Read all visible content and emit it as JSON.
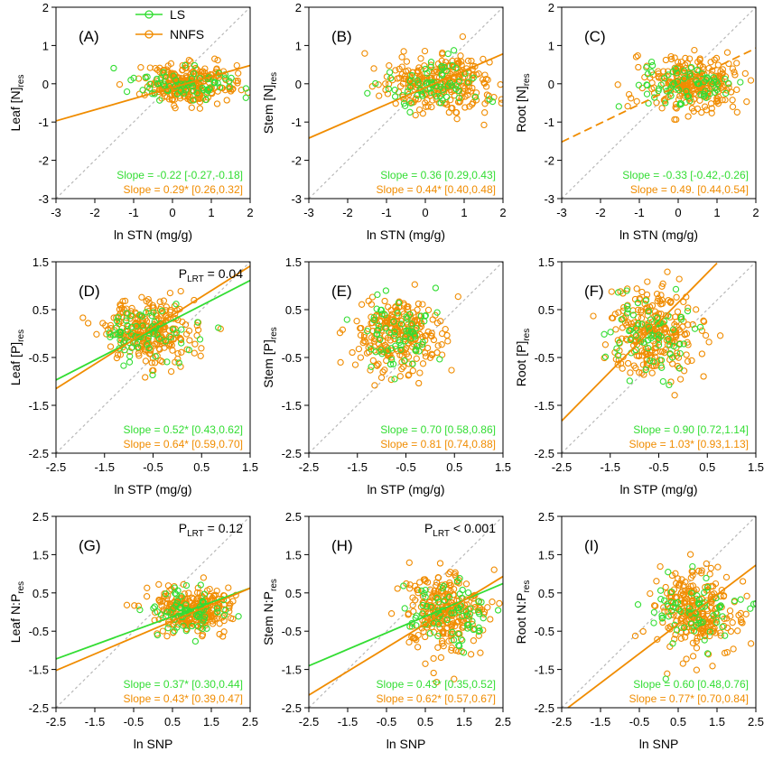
{
  "colors": {
    "ls": "#33dd33",
    "nnfs": "#f08c00",
    "one_to_one": "#b8b8b8"
  },
  "legend": {
    "ls_label": "LS",
    "nnfs_label": "NNFS"
  },
  "chart_data": [
    {
      "panel": "(A)",
      "type": "scatter",
      "xlabel": "ln STN (mg/g)",
      "ylabel_main": "Leaf [N]",
      "ylabel_sub": "res",
      "xlim": [
        -3,
        2
      ],
      "ylim": [
        -3,
        2
      ],
      "xticks": [
        -3,
        -2,
        -1,
        0,
        1,
        2
      ],
      "yticks": [
        -3,
        -2,
        -1,
        0,
        1,
        2
      ],
      "plrt": null,
      "ls": {
        "slope_text": "Slope = -0.22 [-0.27,-0.18]",
        "line": null,
        "cloud": {
          "cx": 0.3,
          "cy": 0.0,
          "sx": 0.7,
          "sy": 0.2,
          "n": 70
        }
      },
      "nnfs": {
        "slope_text": "Slope = 0.29* [0.26,0.32]",
        "line": {
          "slope": 0.29,
          "intercept": -0.1,
          "x0": -3,
          "x1": 2,
          "dashed": false
        },
        "cloud": {
          "cx": 0.4,
          "cy": 0.0,
          "sx": 0.6,
          "sy": 0.25,
          "n": 260
        }
      }
    },
    {
      "panel": "(B)",
      "type": "scatter",
      "xlabel": "ln STN (mg/g)",
      "ylabel_main": "Stem [N]",
      "ylabel_sub": "res",
      "xlim": [
        -3,
        2
      ],
      "ylim": [
        -3,
        2
      ],
      "xticks": [
        -3,
        -2,
        -1,
        0,
        1,
        2
      ],
      "yticks": [
        -3,
        -2,
        -1,
        0,
        1,
        2
      ],
      "plrt": null,
      "ls": {
        "slope_text": "Slope = 0.36 [0.29,0.43]",
        "line": null,
        "cloud": {
          "cx": 0.3,
          "cy": 0.0,
          "sx": 0.7,
          "sy": 0.3,
          "n": 70
        }
      },
      "nnfs": {
        "slope_text": "Slope = 0.44* [0.40,0.48]",
        "line": {
          "slope": 0.44,
          "intercept": -0.1,
          "x0": -3,
          "x1": 2,
          "dashed": false
        },
        "cloud": {
          "cx": 0.3,
          "cy": 0.0,
          "sx": 0.7,
          "sy": 0.35,
          "n": 260
        }
      }
    },
    {
      "panel": "(C)",
      "type": "scatter",
      "xlabel": "ln STN (mg/g)",
      "ylabel_main": "Root [N]",
      "ylabel_sub": "res",
      "xlim": [
        -3,
        2
      ],
      "ylim": [
        -3,
        2
      ],
      "xticks": [
        -3,
        -2,
        -1,
        0,
        1,
        2
      ],
      "yticks": [
        -3,
        -2,
        -1,
        0,
        1,
        2
      ],
      "plrt": null,
      "ls": {
        "slope_text": "Slope = -0.33 [-0.42,-0.26]",
        "line": null,
        "cloud": {
          "cx": 0.1,
          "cy": 0.0,
          "sx": 0.7,
          "sy": 0.25,
          "n": 70
        }
      },
      "nnfs": {
        "slope_text": "Slope = 0.49. [0.44,0.54]",
        "line": {
          "slope": 0.49,
          "intercept": -0.05,
          "x0": -3,
          "x1": 2,
          "dashed": true
        },
        "cloud": {
          "cx": 0.3,
          "cy": 0.0,
          "sx": 0.6,
          "sy": 0.35,
          "n": 260
        }
      }
    },
    {
      "panel": "(D)",
      "type": "scatter",
      "xlabel": "ln STP (mg/g)",
      "ylabel_main": "Leaf [P]",
      "ylabel_sub": "res",
      "xlim": [
        -2.5,
        1.5
      ],
      "ylim": [
        -2.5,
        1.5
      ],
      "xticks": [
        -2.5,
        -1.5,
        -0.5,
        0.5,
        1.5
      ],
      "yticks": [
        -2.5,
        -1.5,
        -0.5,
        0.5,
        1.5
      ],
      "plrt": {
        "p": "P",
        "sub": "LRT",
        "rest": " = 0.04"
      },
      "ls": {
        "slope_text": "Slope = 0.52* [0.43,0.62]",
        "line": {
          "slope": 0.52,
          "intercept": 0.33,
          "x0": -2.5,
          "x1": 1.5,
          "dashed": false
        },
        "cloud": {
          "cx": -0.6,
          "cy": 0.0,
          "sx": 0.45,
          "sy": 0.3,
          "n": 70
        }
      },
      "nnfs": {
        "slope_text": "Slope = 0.64* [0.59,0.70]",
        "line": {
          "slope": 0.64,
          "intercept": 0.45,
          "x0": -2.5,
          "x1": 1.5,
          "dashed": false
        },
        "cloud": {
          "cx": -0.6,
          "cy": 0.05,
          "sx": 0.45,
          "sy": 0.35,
          "n": 260
        }
      }
    },
    {
      "panel": "(E)",
      "type": "scatter",
      "xlabel": "ln STP (mg/g)",
      "ylabel_main": "Stem [P]",
      "ylabel_sub": "res",
      "xlim": [
        -2.5,
        1.5
      ],
      "ylim": [
        -2.5,
        1.5
      ],
      "xticks": [
        -2.5,
        -1.5,
        -0.5,
        0.5,
        1.5
      ],
      "yticks": [
        -2.5,
        -1.5,
        -0.5,
        0.5,
        1.5
      ],
      "plrt": null,
      "ls": {
        "slope_text": "Slope = 0.70 [0.58,0.86]",
        "line": null,
        "cloud": {
          "cx": -0.7,
          "cy": 0.0,
          "sx": 0.45,
          "sy": 0.4,
          "n": 70
        }
      },
      "nnfs": {
        "slope_text": "Slope = 0.81 [0.74,0.88]",
        "line": null,
        "cloud": {
          "cx": -0.7,
          "cy": 0.0,
          "sx": 0.45,
          "sy": 0.4,
          "n": 260
        }
      }
    },
    {
      "panel": "(F)",
      "type": "scatter",
      "xlabel": "ln STP (mg/g)",
      "ylabel_main": "Root [P]",
      "ylabel_sub": "res",
      "xlim": [
        -2.5,
        1.5
      ],
      "ylim": [
        -2.5,
        1.5
      ],
      "xticks": [
        -2.5,
        -1.5,
        -0.5,
        0.5,
        1.5
      ],
      "yticks": [
        -2.5,
        -1.5,
        -0.5,
        0.5,
        1.5
      ],
      "plrt": null,
      "ls": {
        "slope_text": "Slope = 0.90 [0.72,1.14]",
        "line": null,
        "cloud": {
          "cx": -0.7,
          "cy": 0.0,
          "sx": 0.5,
          "sy": 0.4,
          "n": 70
        }
      },
      "nnfs": {
        "slope_text": "Slope = 1.03* [0.93,1.13]",
        "line": {
          "slope": 1.03,
          "intercept": 0.75,
          "x0": -2.5,
          "x1": 0.7,
          "dashed": false
        },
        "cloud": {
          "cx": -0.6,
          "cy": 0.0,
          "sx": 0.45,
          "sy": 0.45,
          "n": 260
        }
      }
    },
    {
      "panel": "(G)",
      "type": "scatter",
      "xlabel": "ln SNP",
      "ylabel_main": "Leaf N:P",
      "ylabel_sub": "res",
      "xlim": [
        -2.5,
        2.5
      ],
      "ylim": [
        -2.5,
        2.5
      ],
      "xticks": [
        -2.5,
        -1.5,
        -0.5,
        0.5,
        1.5,
        2.5
      ],
      "yticks": [
        -2.5,
        -1.5,
        -0.5,
        0.5,
        1.5,
        2.5
      ],
      "plrt": {
        "p": "P",
        "sub": "LRT",
        "rest": " = 0.12"
      },
      "ls": {
        "slope_text": "Slope = 0.37* [0.30,0.44]",
        "line": {
          "slope": 0.37,
          "intercept": -0.3,
          "x0": -2.5,
          "x1": 2.5,
          "dashed": false
        },
        "cloud": {
          "cx": 0.9,
          "cy": 0.0,
          "sx": 0.6,
          "sy": 0.3,
          "n": 70
        }
      },
      "nnfs": {
        "slope_text": "Slope = 0.43* [0.39,0.47]",
        "line": {
          "slope": 0.43,
          "intercept": -0.45,
          "x0": -2.5,
          "x1": 2.5,
          "dashed": false
        },
        "cloud": {
          "cx": 1.0,
          "cy": 0.05,
          "sx": 0.5,
          "sy": 0.3,
          "n": 260
        }
      }
    },
    {
      "panel": "(H)",
      "type": "scatter",
      "xlabel": "ln SNP",
      "ylabel_main": "Stem N:P",
      "ylabel_sub": "res",
      "xlim": [
        -2.5,
        2.5
      ],
      "ylim": [
        -2.5,
        2.5
      ],
      "xticks": [
        -2.5,
        -1.5,
        -0.5,
        0.5,
        1.5,
        2.5
      ],
      "yticks": [
        -2.5,
        -1.5,
        -0.5,
        0.5,
        1.5,
        2.5
      ],
      "plrt": {
        "p": "P",
        "sub": "LRT",
        "rest": " < 0.001"
      },
      "ls": {
        "slope_text": "Slope = 0.43* [0.35,0.52]",
        "line": {
          "slope": 0.43,
          "intercept": -0.33,
          "x0": -2.5,
          "x1": 2.5,
          "dashed": false
        },
        "cloud": {
          "cx": 1.0,
          "cy": 0.0,
          "sx": 0.6,
          "sy": 0.4,
          "n": 70
        }
      },
      "nnfs": {
        "slope_text": "Slope = 0.62* [0.57,0.67]",
        "line": {
          "slope": 0.62,
          "intercept": -0.62,
          "x0": -2.5,
          "x1": 2.5,
          "dashed": false
        },
        "cloud": {
          "cx": 1.0,
          "cy": 0.0,
          "sx": 0.5,
          "sy": 0.5,
          "n": 260
        }
      }
    },
    {
      "panel": "(I)",
      "type": "scatter",
      "xlabel": "ln SNP",
      "ylabel_main": "Root N:P",
      "ylabel_sub": "res",
      "xlim": [
        -2.5,
        2.5
      ],
      "ylim": [
        -2.5,
        2.5
      ],
      "xticks": [
        -2.5,
        -1.5,
        -0.5,
        0.5,
        1.5,
        2.5
      ],
      "yticks": [
        -2.5,
        -1.5,
        -0.5,
        0.5,
        1.5,
        2.5
      ],
      "plrt": null,
      "ls": {
        "slope_text": "Slope = 0.60 [0.48,0.76]",
        "line": null,
        "cloud": {
          "cx": 1.0,
          "cy": 0.0,
          "sx": 0.6,
          "sy": 0.45,
          "n": 70
        }
      },
      "nnfs": {
        "slope_text": "Slope = 0.77* [0.70,0.84]",
        "line": {
          "slope": 0.77,
          "intercept": -0.7,
          "x0": -2.5,
          "x1": 2.5,
          "dashed": false
        },
        "cloud": {
          "cx": 1.0,
          "cy": 0.0,
          "sx": 0.5,
          "sy": 0.55,
          "n": 260
        }
      }
    }
  ]
}
